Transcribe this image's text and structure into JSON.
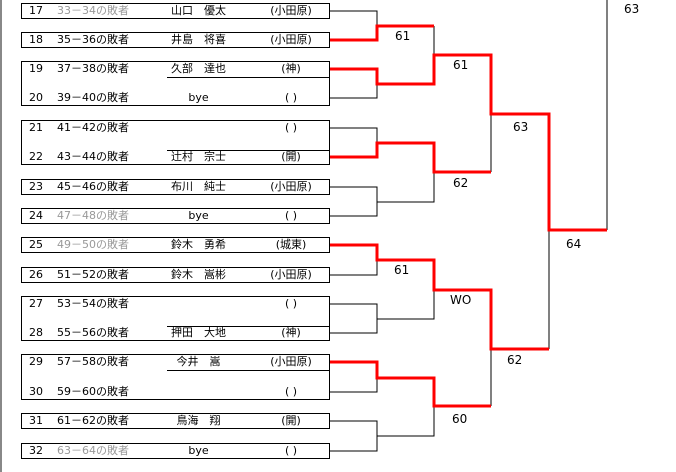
{
  "colors": {
    "win": "#ff0000",
    "line": "#000000",
    "muted": "#999999"
  },
  "entries": [
    {
      "no": "17",
      "src": "33－34の敗者",
      "src_muted": true,
      "name": "山口　優太",
      "aff": "(小田原)"
    },
    {
      "no": "18",
      "src": "35－36の敗者",
      "src_muted": false,
      "name": "井島　将喜",
      "aff": "(小田原)"
    },
    {
      "no": "19",
      "src": "37－38の敗者",
      "src_muted": false,
      "name": "久部　達也",
      "aff": "(神)"
    },
    {
      "no": "20",
      "src": "39－40の敗者",
      "src_muted": false,
      "name": "bye",
      "aff": "(  )"
    },
    {
      "no": "21",
      "src": "41－42の敗者",
      "src_muted": false,
      "name": "",
      "aff": "(  )"
    },
    {
      "no": "22",
      "src": "43－44の敗者",
      "src_muted": false,
      "name": "辻村　宗士",
      "aff": "(開)"
    },
    {
      "no": "23",
      "src": "45－46の敗者",
      "src_muted": false,
      "name": "布川　純士",
      "aff": "(小田原)"
    },
    {
      "no": "24",
      "src": "47－48の敗者",
      "src_muted": true,
      "name": "bye",
      "aff": "(  )"
    },
    {
      "no": "25",
      "src": "49－50の敗者",
      "src_muted": true,
      "name": "鈴木　勇希",
      "aff": "(城東)"
    },
    {
      "no": "26",
      "src": "51－52の敗者",
      "src_muted": false,
      "name": "鈴木　嵩彬",
      "aff": "(小田原)"
    },
    {
      "no": "27",
      "src": "53－54の敗者",
      "src_muted": false,
      "name": "",
      "aff": "(  )"
    },
    {
      "no": "28",
      "src": "55－56の敗者",
      "src_muted": false,
      "name": "押田　大地",
      "aff": "(神)"
    },
    {
      "no": "29",
      "src": "57－58の敗者",
      "src_muted": false,
      "name": "今井　嵩",
      "aff": "(小田原)"
    },
    {
      "no": "30",
      "src": "59－60の敗者",
      "src_muted": false,
      "name": "",
      "aff": "(  )"
    },
    {
      "no": "31",
      "src": "61－62の敗者",
      "src_muted": false,
      "name": "鳥海　翔",
      "aff": "(開)"
    },
    {
      "no": "32",
      "src": "63－64の敗者",
      "src_muted": true,
      "name": "bye",
      "aff": "(  )"
    }
  ],
  "scores": {
    "r1_a": "61",
    "r2_a": "61",
    "r3_a": "63",
    "r2_b": "62",
    "r1_c": "61",
    "r2_c": "WO",
    "r3_c": "62",
    "r2_d": "60",
    "r4_lower": "64",
    "final_top": "63"
  }
}
